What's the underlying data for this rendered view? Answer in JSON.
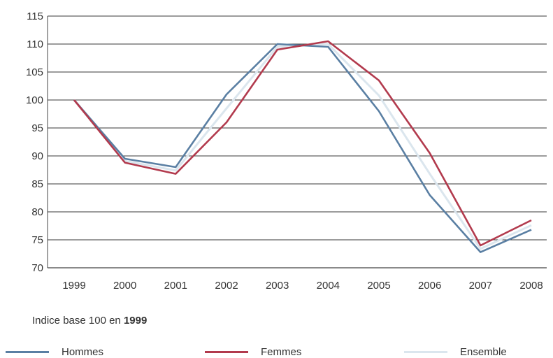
{
  "chart_data": {
    "type": "line",
    "x": [
      "1999",
      "2000",
      "2001",
      "2002",
      "2003",
      "2004",
      "2005",
      "2006",
      "2007",
      "2008"
    ],
    "series": [
      {
        "name": "Hommes",
        "color": "#5a7fa3",
        "values": [
          100,
          89.5,
          88,
          101,
          110,
          109.5,
          98,
          83,
          72.8,
          76.8
        ]
      },
      {
        "name": "Femmes",
        "color": "#b23a4d",
        "values": [
          100,
          88.8,
          86.8,
          96,
          109,
          110.5,
          103.5,
          90.5,
          74,
          78.5
        ]
      },
      {
        "name": "Ensemble",
        "color": "#dbe6ee",
        "values": [
          100,
          89.1,
          87.4,
          98.5,
          109.5,
          110,
          100.8,
          86.8,
          73.4,
          77.6
        ]
      }
    ],
    "y_ticks": [
      "115",
      "110",
      "105",
      "100",
      "95",
      "90",
      "85",
      "80",
      "75",
      "70"
    ],
    "ylim": [
      70,
      115
    ],
    "grid": true,
    "legend_position": "bottom",
    "note_prefix": "Indice base 100 en",
    "note_year": "1999"
  }
}
